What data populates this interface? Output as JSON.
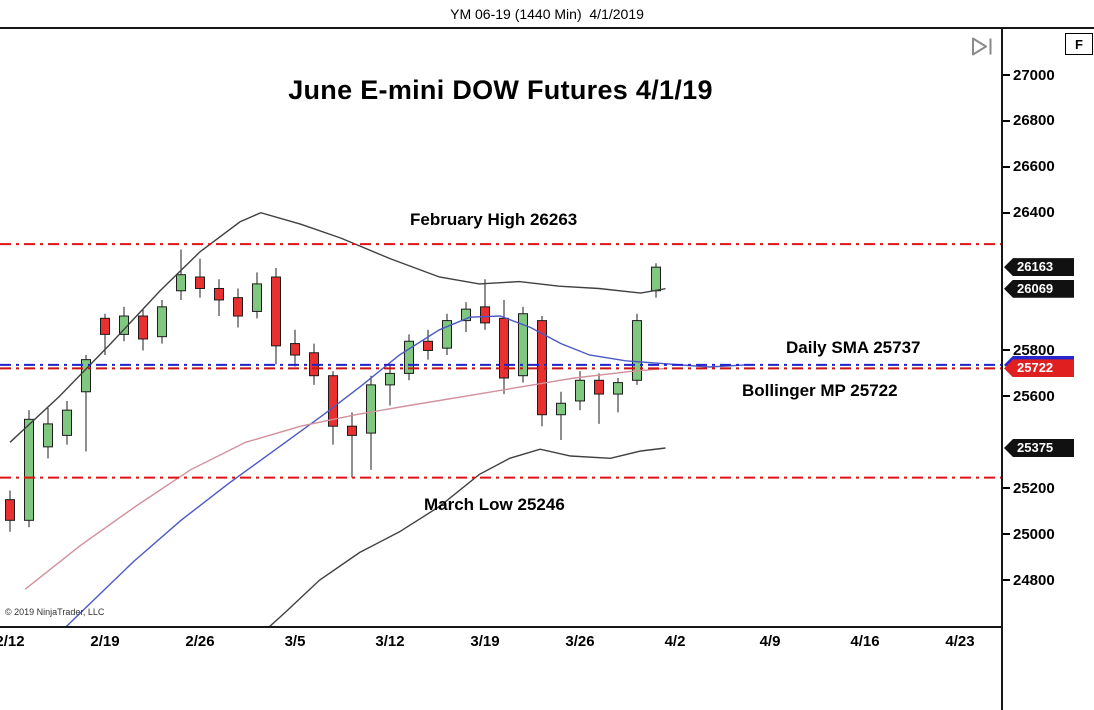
{
  "window": {
    "title": "YM 06-19 (1440 Min)  4/1/2019"
  },
  "chart": {
    "title": "June E-mini DOW Futures 4/1/19",
    "labels": {
      "feb_high": "February High 26263",
      "march_low": "March Low 25246",
      "daily_sma": "Daily SMA 25737",
      "bollinger_mp": "Bollinger MP 25722"
    },
    "copyright": "© 2019 NinjaTrader, LLC",
    "f_button": "F"
  },
  "chart_data": {
    "type": "candlestick",
    "title": "June E-mini DOW Futures 4/1/19",
    "instrument": "YM 06-19 (1440 Min)",
    "as_of": "4/1/2019",
    "ylim": [
      24600,
      27100
    ],
    "grid": false,
    "y_axis": {
      "tick_interval": 200,
      "ticks": [
        27000,
        26800,
        26600,
        26400,
        25800,
        25600,
        25200,
        25000,
        24800
      ]
    },
    "x_axis": {
      "ticks": [
        "2/12",
        "2/19",
        "2/26",
        "3/5",
        "3/12",
        "3/19",
        "3/26",
        "4/2",
        "4/9",
        "4/16",
        "4/23"
      ]
    },
    "style": {
      "up_color": "#80c880",
      "down_color": "#e83030",
      "wick_color": "#1c1c1c",
      "background": "#ffffff"
    },
    "levels": [
      {
        "name": "February High",
        "value": 26263,
        "color": "#e01212",
        "style": "dash-dot"
      },
      {
        "name": "March Low",
        "value": 25246,
        "color": "#e01212",
        "style": "dash-dot"
      },
      {
        "name": "Daily SMA",
        "value": 25737,
        "color": "#2222cc",
        "style": "dash-dot"
      },
      {
        "name": "Bollinger MP",
        "value": 25722,
        "color": "#cc1111",
        "style": "dash-dot"
      }
    ],
    "price_markers": [
      {
        "label": "26163",
        "value": 26163,
        "color": "#111111"
      },
      {
        "label": "26069",
        "value": 26069,
        "color": "#111111"
      },
      {
        "label": "25737",
        "value": 25737,
        "color": "#2626cc"
      },
      {
        "label": "25722",
        "value": 25722,
        "color": "#e02020"
      },
      {
        "label": "25375",
        "value": 25375,
        "color": "#111111"
      }
    ],
    "candles": [
      [
        "2/12",
        25150,
        25190,
        25010,
        25060
      ],
      [
        "2/13",
        25060,
        25540,
        25030,
        25500
      ],
      [
        "2/14",
        25380,
        25550,
        25330,
        25480
      ],
      [
        "2/15",
        25430,
        25580,
        25390,
        25540
      ],
      [
        "2/18",
        25620,
        25780,
        25360,
        25760
      ],
      [
        "2/19",
        25940,
        25960,
        25780,
        25870
      ],
      [
        "2/20",
        25870,
        25990,
        25840,
        25950
      ],
      [
        "2/21",
        25950,
        25980,
        25800,
        25850
      ],
      [
        "2/22",
        25860,
        26020,
        25830,
        25990
      ],
      [
        "2/25",
        26060,
        26240,
        26020,
        26130
      ],
      [
        "2/26",
        26120,
        26200,
        26030,
        26070
      ],
      [
        "2/27",
        26070,
        26110,
        25950,
        26020
      ],
      [
        "2/28",
        26030,
        26070,
        25900,
        25950
      ],
      [
        "3/1",
        25970,
        26140,
        25940,
        26090
      ],
      [
        "3/4",
        26120,
        26160,
        25740,
        25820
      ],
      [
        "3/5",
        25830,
        25890,
        25730,
        25780
      ],
      [
        "3/6",
        25790,
        25830,
        25650,
        25690
      ],
      [
        "3/7",
        25690,
        25710,
        25390,
        25470
      ],
      [
        "3/8",
        25470,
        25530,
        25246,
        25430
      ],
      [
        "3/11",
        25440,
        25690,
        25280,
        25650
      ],
      [
        "3/12",
        25650,
        25740,
        25560,
        25700
      ],
      [
        "3/13",
        25700,
        25870,
        25670,
        25840
      ],
      [
        "3/14",
        25840,
        25890,
        25760,
        25800
      ],
      [
        "3/15",
        25810,
        25960,
        25780,
        25930
      ],
      [
        "3/18",
        25930,
        26010,
        25880,
        25980
      ],
      [
        "3/19",
        25990,
        26110,
        25890,
        25920
      ],
      [
        "3/20",
        25940,
        26020,
        25610,
        25680
      ],
      [
        "3/21",
        25690,
        25990,
        25660,
        25960
      ],
      [
        "3/22",
        25930,
        25950,
        25470,
        25520
      ],
      [
        "3/25",
        25520,
        25620,
        25410,
        25570
      ],
      [
        "3/26",
        25580,
        25710,
        25540,
        25670
      ],
      [
        "3/27",
        25670,
        25700,
        25480,
        25610
      ],
      [
        "3/28",
        25610,
        25680,
        25530,
        25660
      ],
      [
        "3/29",
        25670,
        25960,
        25650,
        25930
      ],
      [
        "4/1",
        26060,
        26180,
        26030,
        26163
      ]
    ],
    "overlays": [
      {
        "name": "bollinger-upper-band",
        "color": "#404040",
        "points": [
          [
            0,
            25400
          ],
          [
            2.6,
            25600
          ],
          [
            5.3,
            25830
          ],
          [
            7.9,
            26060
          ],
          [
            10,
            26230
          ],
          [
            12.1,
            26360
          ],
          [
            13.2,
            26400
          ],
          [
            15.3,
            26350
          ],
          [
            17.4,
            26290
          ],
          [
            20,
            26200
          ],
          [
            22.6,
            26120
          ],
          [
            24.7,
            26090
          ],
          [
            26.8,
            26100
          ],
          [
            28.9,
            26080
          ],
          [
            31,
            26070
          ],
          [
            33.2,
            26050
          ],
          [
            34.5,
            26069
          ]
        ]
      },
      {
        "name": "bollinger-lower-band",
        "color": "#404040",
        "points": [
          [
            12.9,
            24540
          ],
          [
            14.5,
            24660
          ],
          [
            16.3,
            24800
          ],
          [
            18.4,
            24920
          ],
          [
            20.5,
            25010
          ],
          [
            22.6,
            25120
          ],
          [
            24.7,
            25260
          ],
          [
            26.3,
            25330
          ],
          [
            27.9,
            25370
          ],
          [
            29.5,
            25340
          ],
          [
            31.6,
            25330
          ],
          [
            33.2,
            25362
          ],
          [
            34.5,
            25375
          ]
        ]
      },
      {
        "name": "daily-sma",
        "color": "#4a5ac4",
        "points": [
          [
            1.5,
            24480
          ],
          [
            4,
            24680
          ],
          [
            6.5,
            24880
          ],
          [
            9,
            25060
          ],
          [
            11.5,
            25220
          ],
          [
            14,
            25370
          ],
          [
            16.5,
            25520
          ],
          [
            18.4,
            25640
          ],
          [
            20.5,
            25780
          ],
          [
            22.6,
            25890
          ],
          [
            24.2,
            25945
          ],
          [
            25.8,
            25950
          ],
          [
            27.4,
            25900
          ],
          [
            29,
            25830
          ],
          [
            30.5,
            25780
          ],
          [
            32.4,
            25755
          ],
          [
            34,
            25745
          ],
          [
            36.8,
            25728
          ],
          [
            38.7,
            25737
          ]
        ]
      },
      {
        "name": "bollinger-midpoint",
        "color": "#d2909b",
        "points": [
          [
            0.8,
            24760
          ],
          [
            3.7,
            24950
          ],
          [
            6.6,
            25120
          ],
          [
            9.5,
            25280
          ],
          [
            12.4,
            25400
          ],
          [
            15.3,
            25470
          ],
          [
            18.2,
            25520
          ],
          [
            21,
            25560
          ],
          [
            23.9,
            25600
          ],
          [
            26.8,
            25640
          ],
          [
            29.7,
            25680
          ],
          [
            32.6,
            25708
          ],
          [
            34.5,
            25722
          ]
        ]
      }
    ]
  }
}
